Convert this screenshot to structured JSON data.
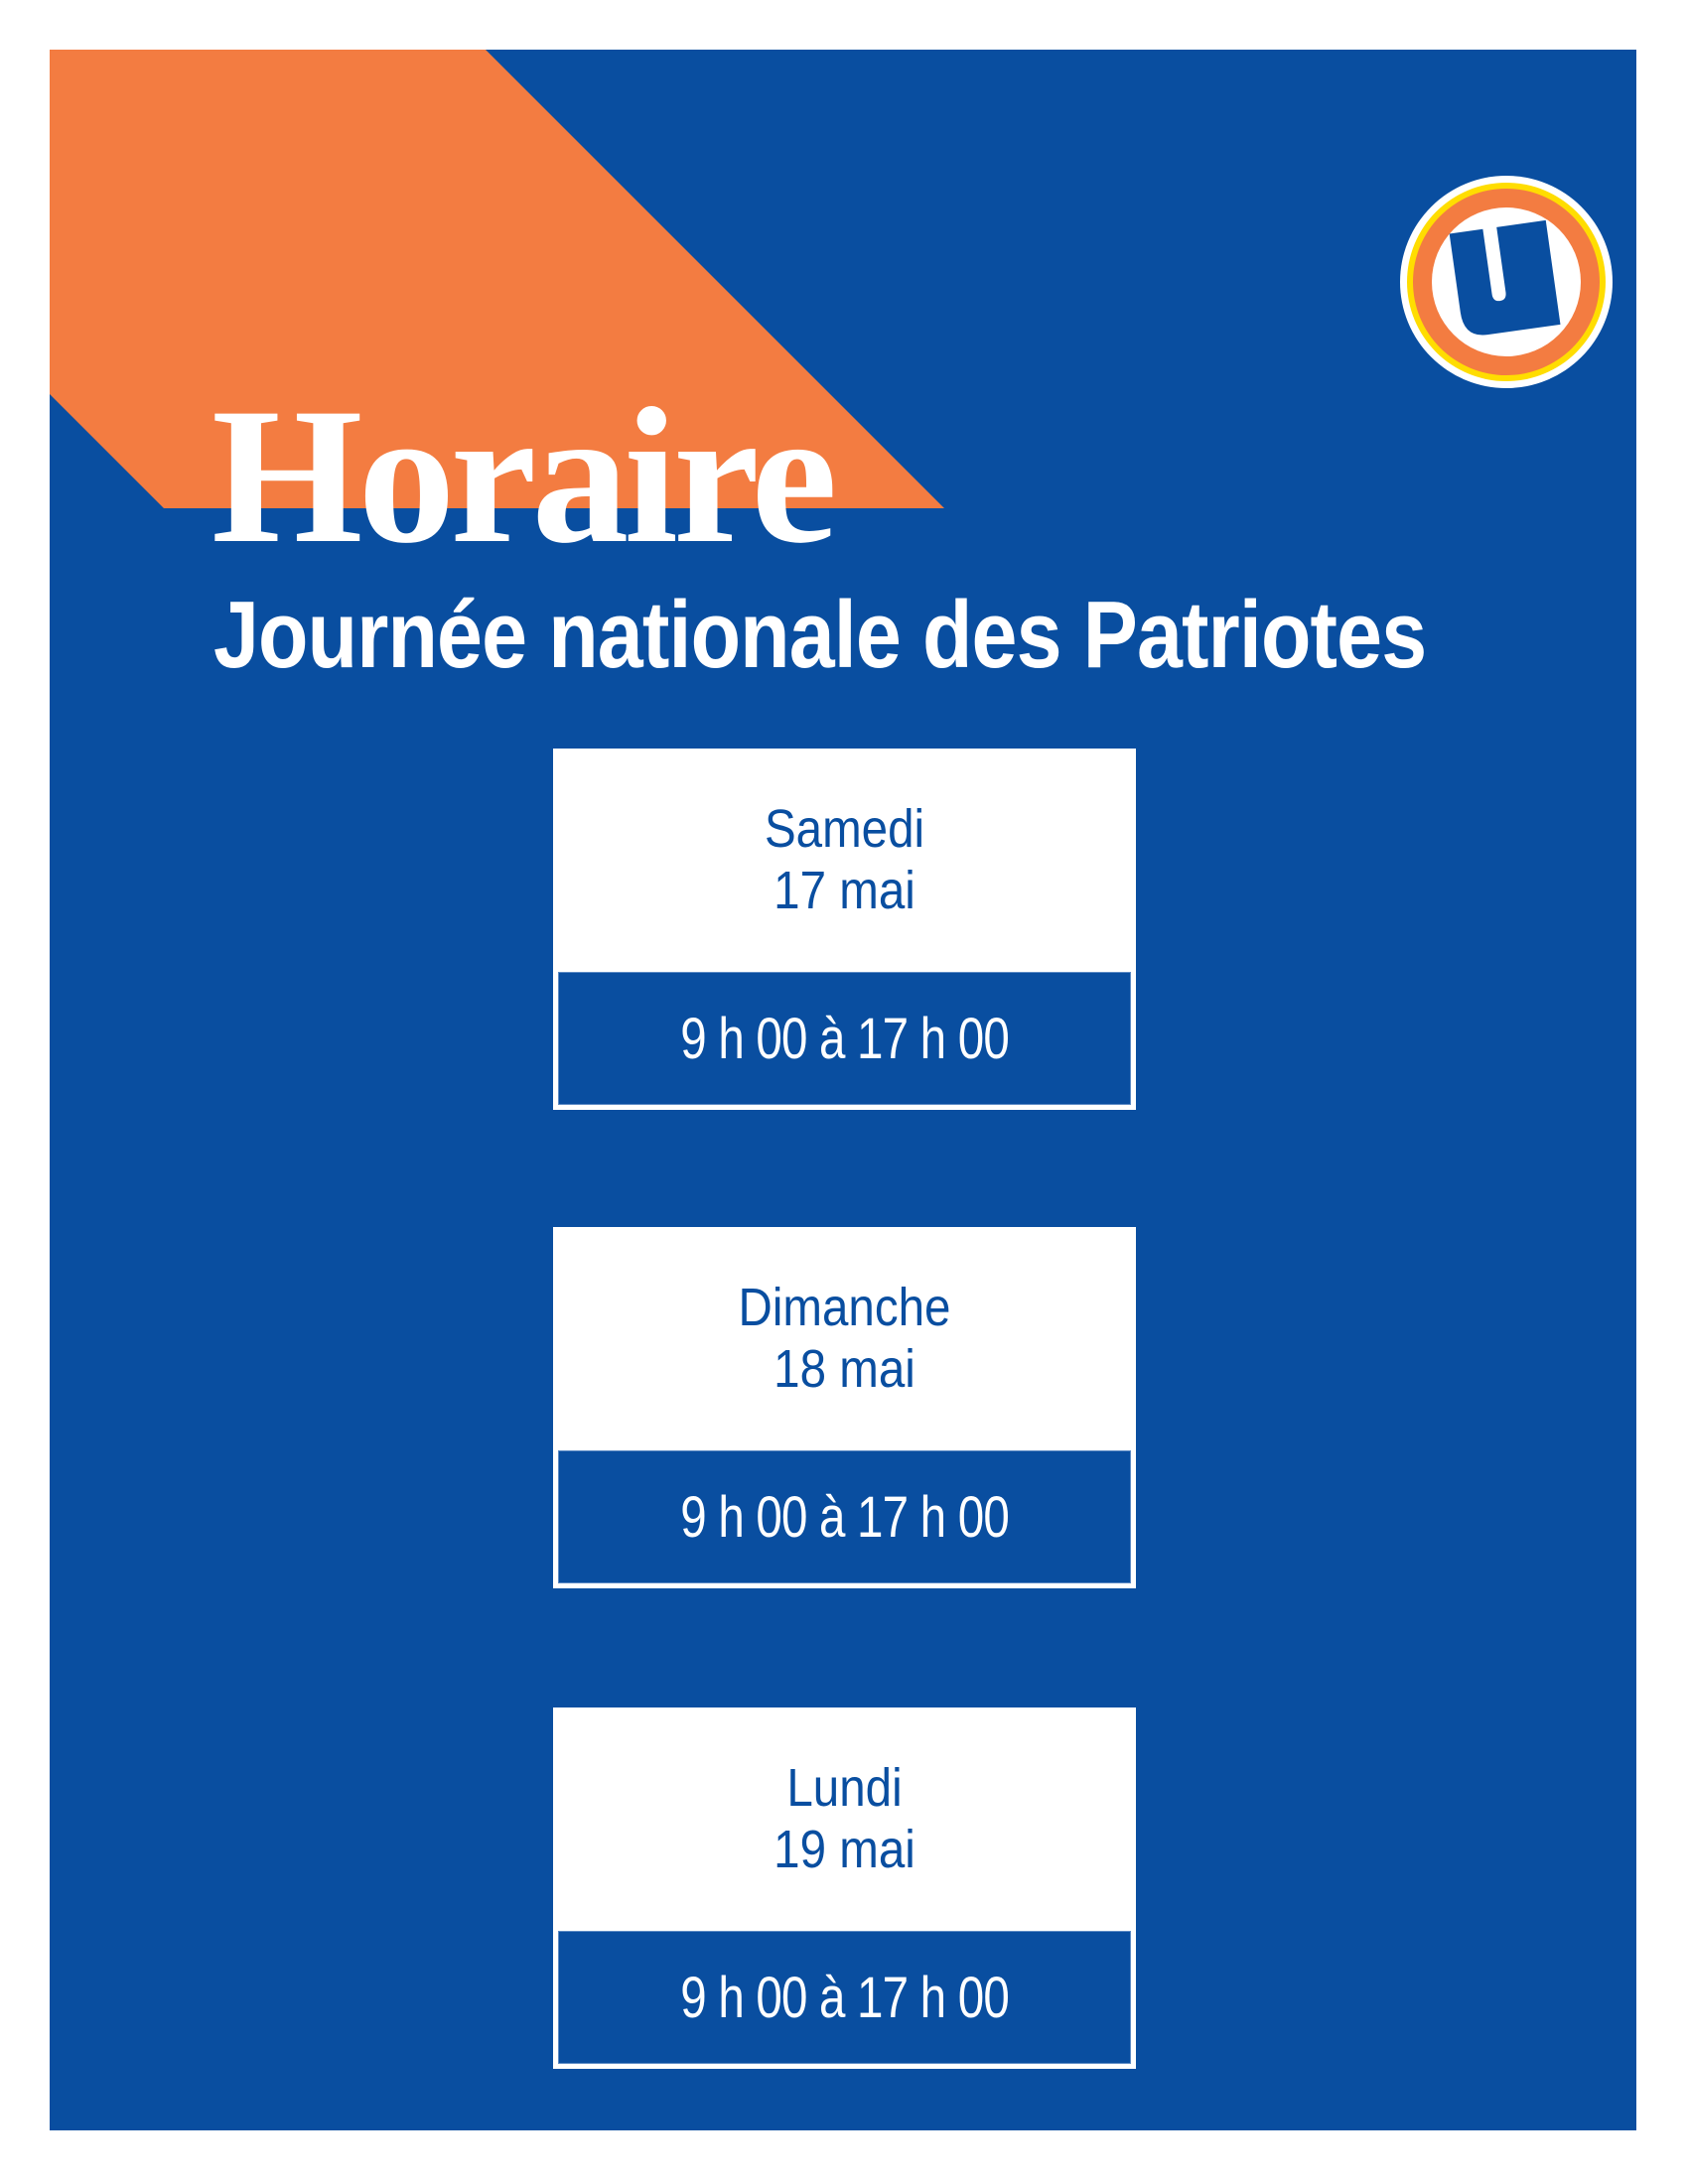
{
  "poster": {
    "title": "Horaire",
    "subtitle": "Journée nationale des Patriotes",
    "colors": {
      "background": "#094ea0",
      "accent": "#f37c41",
      "logo_ring_yellow": "#ffdd00",
      "text": "#ffffff"
    },
    "logo": {
      "icon": "u-logo-icon",
      "letter": "U"
    }
  },
  "schedule": [
    {
      "day": "Samedi",
      "date": "17 mai",
      "hours": "9 h 00 à 17 h 00"
    },
    {
      "day": "Dimanche",
      "date": "18 mai",
      "hours": "9 h 00 à 17 h 00"
    },
    {
      "day": "Lundi",
      "date": "19 mai",
      "hours": "9 h 00 à 17 h 00"
    }
  ]
}
